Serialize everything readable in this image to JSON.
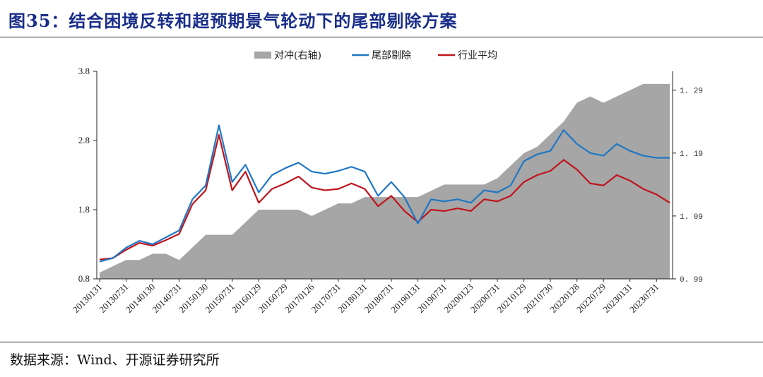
{
  "title": "图35：结合困境反转和超预期景气轮动下的尾部剔除方案",
  "source": "数据来源：Wind、开源证券研究所",
  "colors": {
    "area": "#a6a6a6",
    "tail": "#1f77c4",
    "industry": "#c0141c"
  },
  "chart_data": {
    "type": "line",
    "x": [
      "20130131",
      "20130430",
      "20130731",
      "20131031",
      "20140130",
      "20140430",
      "20140731",
      "20141031",
      "20150130",
      "20150430",
      "20150731",
      "20151030",
      "20160129",
      "20160429",
      "20160729",
      "20161031",
      "20170126",
      "20170428",
      "20170731",
      "20171031",
      "20180131",
      "20180427",
      "20180731",
      "20181031",
      "20190131",
      "20190430",
      "20190731",
      "20191031",
      "20200123",
      "20200430",
      "20200731",
      "20201030",
      "20210129",
      "20210430",
      "20210730",
      "20211029",
      "20220128",
      "20220429",
      "20220729",
      "20221031",
      "20230131",
      "20230428",
      "20230731",
      "20231031"
    ],
    "x_tick_labels": [
      "20130131",
      "20130731",
      "20140130",
      "20140731",
      "20150130",
      "20150731",
      "20160129",
      "20160729",
      "20170126",
      "20170731",
      "20180131",
      "20180731",
      "20190131",
      "20190731",
      "20200123",
      "20200731",
      "20210129",
      "20210730",
      "20220128",
      "20220729",
      "20230131",
      "20230731"
    ],
    "ylim_left": [
      0.8,
      3.8
    ],
    "yticks_left": [
      "0.8",
      "1.8",
      "2.8",
      "3.8"
    ],
    "ylim_right": [
      0.99,
      1.32
    ],
    "yticks_right": [
      "0.99",
      "1.09",
      "1.19",
      "1.29"
    ],
    "grid": false,
    "legend_position": "top",
    "series": [
      {
        "name": "对冲(右轴)",
        "kind": "area",
        "axis": "right",
        "values": [
          1.0,
          1.01,
          1.02,
          1.02,
          1.03,
          1.03,
          1.02,
          1.04,
          1.06,
          1.06,
          1.06,
          1.08,
          1.1,
          1.1,
          1.1,
          1.1,
          1.09,
          1.1,
          1.11,
          1.11,
          1.12,
          1.12,
          1.12,
          1.12,
          1.12,
          1.13,
          1.14,
          1.14,
          1.14,
          1.14,
          1.15,
          1.17,
          1.19,
          1.2,
          1.22,
          1.24,
          1.27,
          1.28,
          1.27,
          1.28,
          1.29,
          1.3,
          1.3,
          1.3
        ]
      },
      {
        "name": "尾部剔除",
        "kind": "line",
        "axis": "left",
        "values": [
          1.05,
          1.1,
          1.25,
          1.35,
          1.3,
          1.4,
          1.5,
          1.95,
          2.15,
          3.02,
          2.2,
          2.45,
          2.05,
          2.3,
          2.4,
          2.48,
          2.35,
          2.32,
          2.36,
          2.42,
          2.35,
          2.0,
          2.2,
          1.98,
          1.6,
          1.95,
          1.92,
          1.95,
          1.9,
          2.08,
          2.05,
          2.15,
          2.5,
          2.6,
          2.65,
          2.95,
          2.75,
          2.62,
          2.58,
          2.75,
          2.65,
          2.58,
          2.55,
          2.55
        ]
      },
      {
        "name": "行业平均",
        "kind": "line",
        "axis": "left",
        "values": [
          1.08,
          1.1,
          1.22,
          1.32,
          1.28,
          1.36,
          1.45,
          1.88,
          2.08,
          2.88,
          2.08,
          2.35,
          1.9,
          2.1,
          2.18,
          2.28,
          2.12,
          2.08,
          2.1,
          2.18,
          2.1,
          1.85,
          2.0,
          1.78,
          1.62,
          1.8,
          1.78,
          1.82,
          1.78,
          1.95,
          1.92,
          2.0,
          2.2,
          2.3,
          2.36,
          2.52,
          2.38,
          2.18,
          2.15,
          2.3,
          2.22,
          2.1,
          2.02,
          1.9
        ]
      }
    ]
  }
}
